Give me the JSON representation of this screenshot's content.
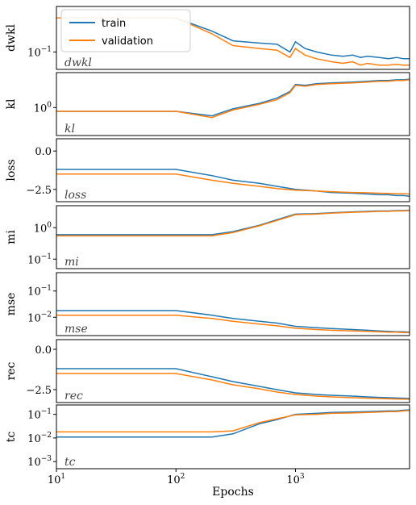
{
  "chart_data": {
    "type": "line",
    "xlabel": "Epochs",
    "xscale": "log",
    "xlim": [
      10,
      9000
    ],
    "x_ticks": [
      {
        "value": 10,
        "base": "10",
        "exp": "1"
      },
      {
        "value": 100,
        "base": "10",
        "exp": "2"
      },
      {
        "value": 1000,
        "base": "10",
        "exp": "3"
      }
    ],
    "legend": {
      "location": "top-left of first panel",
      "entries": [
        {
          "label": "train",
          "color": "#1f77b4"
        },
        {
          "label": "validation",
          "color": "#ff7f0e"
        }
      ]
    },
    "panels": [
      {
        "id": "dwkl",
        "ylabel": "dwkl",
        "tag": "dwkl",
        "yscale": "log",
        "ylim": [
          0.04,
          1.1
        ],
        "yticks": [
          {
            "value": 0.1,
            "base": "10",
            "exp": "−1"
          }
        ],
        "series": [
          {
            "name": "train",
            "x": [
              10,
              100,
              200,
              300,
              500,
              700,
              900,
              1000,
              1200,
              1500,
              2000,
              2500,
              3000,
              3500,
              4000,
              5000,
              6000,
              7000,
              8000,
              9000
            ],
            "y": [
              0.6,
              0.6,
              0.3,
              0.18,
              0.16,
              0.15,
              0.1,
              0.17,
              0.12,
              0.1,
              0.085,
              0.08,
              0.085,
              0.075,
              0.08,
              0.075,
              0.07,
              0.075,
              0.07,
              0.07
            ]
          },
          {
            "name": "validation",
            "x": [
              10,
              100,
              200,
              300,
              500,
              700,
              900,
              1000,
              1200,
              1500,
              2000,
              2500,
              3000,
              3500,
              4000,
              5000,
              6000,
              7000,
              8000,
              9000
            ],
            "y": [
              0.6,
              0.6,
              0.26,
              0.14,
              0.12,
              0.11,
              0.075,
              0.12,
              0.085,
              0.07,
              0.06,
              0.055,
              0.06,
              0.05,
              0.055,
              0.05,
              0.05,
              0.052,
              0.05,
              0.05
            ]
          }
        ]
      },
      {
        "id": "kl",
        "ylabel": "kl",
        "tag": "kl",
        "yscale": "log",
        "ylim": [
          0.3,
          4.5
        ],
        "yticks": [
          {
            "value": 1,
            "base": "10",
            "exp": "0"
          }
        ],
        "series": [
          {
            "name": "train",
            "x": [
              10,
              100,
              200,
              300,
              500,
              700,
              900,
              1000,
              1200,
              1500,
              2000,
              3000,
              4000,
              5000,
              6000,
              7000,
              8000,
              9000
            ],
            "y": [
              0.85,
              0.85,
              0.7,
              0.95,
              1.2,
              1.5,
              2.0,
              2.7,
              2.6,
              2.8,
              2.9,
              3.0,
              3.1,
              3.2,
              3.2,
              3.3,
              3.3,
              3.4
            ]
          },
          {
            "name": "validation",
            "x": [
              10,
              100,
              200,
              300,
              500,
              700,
              900,
              1000,
              1200,
              1500,
              2000,
              3000,
              4000,
              5000,
              6000,
              7000,
              8000,
              9000
            ],
            "y": [
              0.85,
              0.85,
              0.65,
              0.9,
              1.15,
              1.4,
              1.9,
              2.6,
              2.5,
              2.7,
              2.8,
              2.9,
              3.0,
              3.1,
              3.1,
              3.2,
              3.2,
              3.3
            ]
          }
        ]
      },
      {
        "id": "loss",
        "ylabel": "loss",
        "tag": "loss",
        "yscale": "linear",
        "ylim": [
          -3.3,
          0.8
        ],
        "yticks": [
          {
            "value": 0,
            "label": "0.0"
          },
          {
            "value": -2.5,
            "label": "−2.5"
          }
        ],
        "series": [
          {
            "name": "train",
            "x": [
              10,
              100,
              200,
              300,
              500,
              700,
              1000,
              1500,
              2000,
              3000,
              4000,
              5000,
              6000,
              7000,
              8000,
              9000
            ],
            "y": [
              -1.2,
              -1.2,
              -1.6,
              -1.9,
              -2.1,
              -2.3,
              -2.5,
              -2.6,
              -2.7,
              -2.75,
              -2.8,
              -2.85,
              -2.85,
              -2.9,
              -2.9,
              -2.95
            ]
          },
          {
            "name": "validation",
            "x": [
              10,
              100,
              200,
              300,
              500,
              700,
              1000,
              1500,
              2000,
              3000,
              4000,
              5000,
              6000,
              7000,
              8000,
              9000
            ],
            "y": [
              -1.5,
              -1.5,
              -1.9,
              -2.1,
              -2.3,
              -2.45,
              -2.55,
              -2.6,
              -2.65,
              -2.7,
              -2.72,
              -2.75,
              -2.76,
              -2.78,
              -2.78,
              -2.8
            ]
          }
        ]
      },
      {
        "id": "mi",
        "ylabel": "mi",
        "tag": "mi",
        "yscale": "log",
        "ylim": [
          0.05,
          5
        ],
        "yticks": [
          {
            "value": 1,
            "base": "10",
            "exp": "0"
          },
          {
            "value": 0.1,
            "base": "10",
            "exp": "−1"
          }
        ],
        "series": [
          {
            "name": "train",
            "x": [
              10,
              100,
              200,
              300,
              500,
              700,
              1000,
              1500,
              2000,
              3000,
              4000,
              5000,
              6000,
              7000,
              8000,
              9000
            ],
            "y": [
              0.6,
              0.6,
              0.6,
              0.75,
              1.2,
              1.8,
              2.7,
              2.8,
              3.0,
              3.2,
              3.3,
              3.4,
              3.4,
              3.5,
              3.5,
              3.6
            ]
          },
          {
            "name": "validation",
            "x": [
              10,
              100,
              200,
              300,
              500,
              700,
              1000,
              1500,
              2000,
              3000,
              4000,
              5000,
              6000,
              7000,
              8000,
              9000
            ],
            "y": [
              0.55,
              0.55,
              0.55,
              0.7,
              1.15,
              1.7,
              2.6,
              2.7,
              2.9,
              3.1,
              3.2,
              3.3,
              3.3,
              3.4,
              3.4,
              3.5
            ]
          }
        ]
      },
      {
        "id": "mse",
        "ylabel": "mse",
        "tag": "mse",
        "yscale": "log",
        "ylim": [
          0.002,
          0.5
        ],
        "yticks": [
          {
            "value": 0.1,
            "base": "10",
            "exp": "−1"
          },
          {
            "value": 0.01,
            "base": "10",
            "exp": "−2"
          }
        ],
        "series": [
          {
            "name": "train",
            "x": [
              10,
              100,
              200,
              300,
              500,
              700,
              1000,
              1500,
              2000,
              3000,
              4000,
              5000,
              6000,
              7000,
              8000,
              9000
            ],
            "y": [
              0.018,
              0.018,
              0.012,
              0.009,
              0.007,
              0.006,
              0.0045,
              0.004,
              0.0037,
              0.0034,
              0.0032,
              0.003,
              0.0029,
              0.0028,
              0.0028,
              0.0027
            ]
          },
          {
            "name": "validation",
            "x": [
              10,
              100,
              200,
              300,
              500,
              700,
              1000,
              1500,
              2000,
              3000,
              4000,
              5000,
              6000,
              7000,
              8000,
              9000
            ],
            "y": [
              0.012,
              0.012,
              0.009,
              0.007,
              0.0055,
              0.0047,
              0.0038,
              0.0034,
              0.0032,
              0.003,
              0.0029,
              0.0028,
              0.0027,
              0.0027,
              0.0026,
              0.0026
            ]
          }
        ]
      },
      {
        "id": "rec",
        "ylabel": "rec",
        "tag": "rec",
        "yscale": "linear",
        "ylim": [
          -3.3,
          0.6
        ],
        "yticks": [
          {
            "value": 0,
            "label": "0.0"
          },
          {
            "value": -2.5,
            "label": "−2.5"
          }
        ],
        "series": [
          {
            "name": "train",
            "x": [
              10,
              100,
              200,
              300,
              500,
              700,
              1000,
              1500,
              2000,
              3000,
              4000,
              5000,
              6000,
              7000,
              8000,
              9000
            ],
            "y": [
              -1.2,
              -1.2,
              -1.7,
              -2.0,
              -2.3,
              -2.5,
              -2.7,
              -2.8,
              -2.85,
              -2.9,
              -2.95,
              -2.98,
              -3.0,
              -3.02,
              -3.03,
              -3.05
            ]
          },
          {
            "name": "validation",
            "x": [
              10,
              100,
              200,
              300,
              500,
              700,
              1000,
              1500,
              2000,
              3000,
              4000,
              5000,
              6000,
              7000,
              8000,
              9000
            ],
            "y": [
              -1.5,
              -1.5,
              -1.9,
              -2.2,
              -2.45,
              -2.65,
              -2.8,
              -2.9,
              -2.95,
              -3.0,
              -3.03,
              -3.05,
              -3.07,
              -3.08,
              -3.09,
              -3.1
            ]
          }
        ]
      },
      {
        "id": "tc",
        "ylabel": "tc",
        "tag": "tc",
        "yscale": "log",
        "ylim": [
          0.0005,
          0.25
        ],
        "yticks": [
          {
            "value": 0.1,
            "base": "10",
            "exp": "−1"
          },
          {
            "value": 0.01,
            "base": "10",
            "exp": "−2"
          },
          {
            "value": 0.001,
            "base": "10",
            "exp": "−3"
          }
        ],
        "series": [
          {
            "name": "train",
            "x": [
              10,
              100,
              200,
              300,
              500,
              700,
              1000,
              1500,
              2000,
              3000,
              4000,
              5000,
              6000,
              7000,
              8000,
              9000
            ],
            "y": [
              0.011,
              0.011,
              0.011,
              0.015,
              0.04,
              0.06,
              0.1,
              0.11,
              0.12,
              0.125,
              0.13,
              0.135,
              0.14,
              0.14,
              0.15,
              0.155
            ]
          },
          {
            "name": "validation",
            "x": [
              10,
              100,
              200,
              300,
              500,
              700,
              1000,
              1500,
              2000,
              3000,
              4000,
              5000,
              6000,
              7000,
              8000,
              9000
            ],
            "y": [
              0.018,
              0.018,
              0.018,
              0.02,
              0.045,
              0.065,
              0.095,
              0.1,
              0.11,
              0.115,
              0.12,
              0.125,
              0.13,
              0.13,
              0.14,
              0.145
            ]
          }
        ]
      }
    ]
  }
}
